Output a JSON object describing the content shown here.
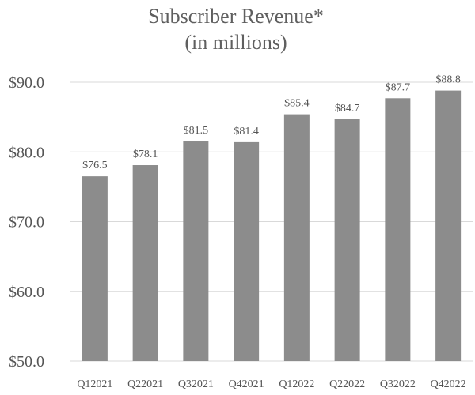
{
  "chart_data": {
    "type": "bar",
    "title": "Subscriber Revenue*",
    "subtitle": "(in millions)",
    "categories": [
      "Q12021",
      "Q22021",
      "Q32021",
      "Q42021",
      "Q12022",
      "Q22022",
      "Q32022",
      "Q42022"
    ],
    "values": [
      76.5,
      78.1,
      81.5,
      81.4,
      85.4,
      84.7,
      87.7,
      88.8
    ],
    "data_labels": [
      "$76.5",
      "$78.1",
      "$81.5",
      "$81.4",
      "$85.4",
      "$84.7",
      "$87.7",
      "$88.8"
    ],
    "yticks": [
      50,
      60,
      70,
      80,
      90
    ],
    "ytick_labels": [
      "$50.0",
      "$60.0",
      "$70.0",
      "$80.0",
      "$90.0"
    ],
    "ylim": [
      50,
      90
    ],
    "xlabel": "",
    "ylabel": "",
    "grid": true,
    "legend": "none",
    "colors": {
      "bar": "#8c8c8c",
      "grid": "#d9d9d9",
      "text": "#555555"
    }
  }
}
